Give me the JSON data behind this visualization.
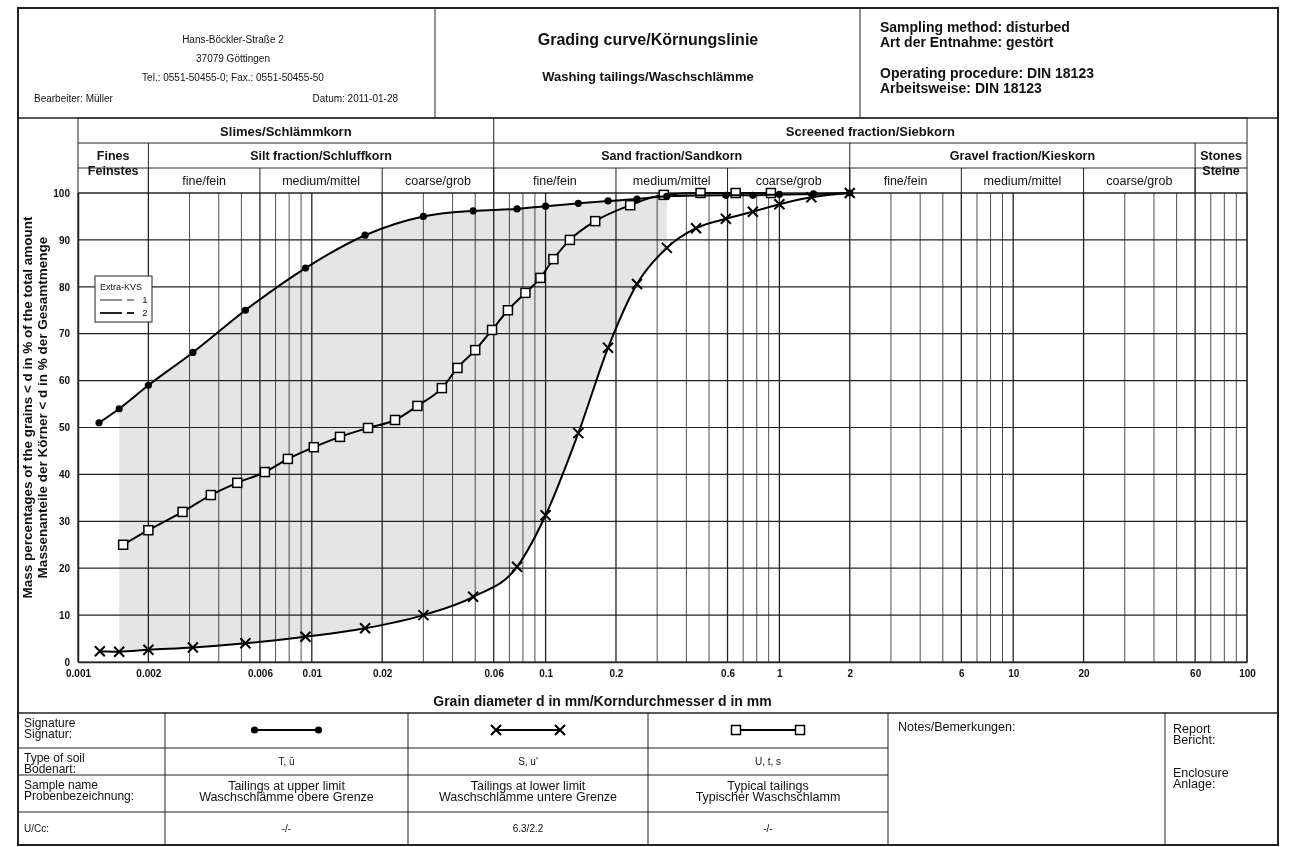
{
  "chart_data": {
    "type": "line",
    "title": "Grading curve/Körnungslinie",
    "subtitle": "Washing tailings/Waschschlämme",
    "xlabel": "Grain diameter d in mm/Korndurchmesser d in mm",
    "ylabel": "Mass percentages of the grains < d in % of the total amount\nMassenanteile der Körner < d in % der Gesamtmenge",
    "log": "x",
    "grid": true,
    "xlim": [
      0.001,
      100
    ],
    "ylim": [
      0,
      100
    ],
    "xticks": [
      0.001,
      0.002,
      {
        "value": 0.003,
        "label": null
      },
      {
        "value": 0.004,
        "label": null
      },
      {
        "value": 0.005,
        "label": null
      },
      0.006,
      {
        "value": 0.007,
        "label": null
      },
      {
        "value": 0.008,
        "label": null
      },
      {
        "value": 0.009,
        "label": null
      },
      0.01,
      0.02,
      {
        "value": 0.03,
        "label": null
      },
      {
        "value": 0.04,
        "label": null
      },
      {
        "value": 0.05,
        "label": null
      },
      0.06,
      {
        "value": 0.07,
        "label": null
      },
      {
        "value": 0.08,
        "label": null
      },
      {
        "value": 0.09,
        "label": null
      },
      0.1,
      0.2,
      {
        "value": 0.3,
        "label": null
      },
      {
        "value": 0.4,
        "label": null
      },
      {
        "value": 0.5,
        "label": null
      },
      0.6,
      {
        "value": 0.7,
        "label": null
      },
      {
        "value": 0.8,
        "label": null
      },
      {
        "value": 0.9,
        "label": null
      },
      1,
      2,
      {
        "value": 3,
        "label": null
      },
      {
        "value": 4,
        "label": null
      },
      {
        "value": 5,
        "label": null
      },
      6,
      {
        "value": 7,
        "label": null
      },
      {
        "value": 8,
        "label": null
      },
      {
        "value": 9,
        "label": null
      },
      10,
      20,
      {
        "value": 30,
        "label": null
      },
      {
        "value": 40,
        "label": null
      },
      {
        "value": 50,
        "label": null
      },
      60,
      {
        "value": 70,
        "label": null
      },
      {
        "value": 80,
        "label": null
      },
      {
        "value": 90,
        "label": null
      },
      100
    ],
    "yticks": [
      0,
      10,
      20,
      30,
      40,
      50,
      60,
      70,
      80,
      90,
      100
    ],
    "series": [
      {
        "color": "#000000",
        "marker": "circle",
        "lower": [
          null,
          2.2,
          2.6,
          3.1,
          4.0,
          5.4,
          7.2,
          10.0,
          13.9,
          20.3,
          31.3,
          48.8,
          67.0,
          80.6,
          88.3,
          null,
          null,
          null,
          null,
          null
        ],
        "upper": [
          null,
          54,
          59,
          66,
          75,
          84,
          91,
          95,
          96.2,
          96.6,
          97.2,
          97.8,
          98.3,
          98.7,
          99.3,
          null,
          null,
          null,
          null,
          null
        ],
        "x": [
          0.00123,
          0.0015,
          0.002,
          0.0031,
          0.0052,
          0.0094,
          0.0169,
          0.03,
          0.049,
          0.0755,
          0.1,
          0.138,
          0.185,
          0.246,
          0.33,
          0.59,
          0.77,
          1.0,
          1.4,
          2
        ],
        "values": [
          51,
          54,
          59,
          66,
          75,
          84,
          91,
          95,
          96.2,
          96.6,
          97.2,
          97.8,
          98.3,
          98.7,
          99.3,
          99.5,
          99.5,
          99.7,
          99.8,
          100
        ]
      },
      {
        "color": "#000000",
        "marker": "cross",
        "x": [
          0.00124,
          0.0015,
          0.002,
          0.0031,
          0.0052,
          0.0094,
          0.0169,
          0.03,
          0.049,
          0.0755,
          0.1,
          0.138,
          0.185,
          0.246,
          0.33,
          0.44,
          0.59,
          0.77,
          1.0,
          1.37,
          2
        ],
        "values": [
          2.3,
          2.2,
          2.6,
          3.1,
          4.0,
          5.4,
          7.2,
          10.0,
          13.9,
          20.3,
          31.3,
          48.8,
          67.0,
          80.6,
          88.3,
          92.5,
          94.5,
          96.0,
          97.6,
          99.1,
          100
        ]
      },
      {
        "color": "#000000",
        "marker": "square",
        "x": [
          0.00156,
          0.002,
          0.0028,
          0.0037,
          0.0048,
          0.0063,
          0.0079,
          0.0102,
          0.0132,
          0.0174,
          0.0227,
          0.0283,
          0.036,
          0.042,
          0.05,
          0.059,
          0.069,
          0.082,
          0.095,
          0.108,
          0.127,
          0.163,
          0.23,
          0.32,
          0.46,
          0.65,
          0.92
        ],
        "values": [
          25,
          28.1,
          32,
          35.6,
          38.2,
          40.5,
          43.3,
          45.8,
          48,
          49.9,
          51.6,
          54.6,
          58.4,
          62.7,
          66.5,
          70.8,
          75,
          78.7,
          81.9,
          85.9,
          90,
          94,
          97.4,
          99.6,
          100,
          100,
          100
        ]
      }
    ],
    "annotations": [
      "Hans-Böckler-Straße 2",
      "37079 Göttingen",
      "Tel.: 0551-50455-0; Fax.: 0551-50455-50",
      "Bearbeiter: Müller",
      "Datum: 2011-01-28",
      "Sampling method: disturbed",
      "Art der Entnahme: gestört",
      "Operating procedure: DIN 18123",
      "Arbeitsweise: DIN 18123",
      "Slimes/Schlämmkorn",
      "Screened fraction/Siebkorn",
      "Fines\nFeinstes",
      "Silt fraction/Schluffkorn",
      "Sand fraction/Sandkorn",
      "Gravel fraction/Kieskorn",
      "Stones\nSteine",
      "fine/fein",
      "medium/mittel",
      "coarse/grob",
      "fine/fein",
      "medium/mittel",
      "coarse/grob",
      "fine/fein",
      "medium/mittel",
      "coarse/grob",
      "Extra-KVS",
      "1",
      "2",
      "Signature\nSignatur:",
      "Type of soil\nBodenart:",
      "Sample name\nProbenbezeichnung:",
      "U/Cc:",
      "T, ū",
      "S, u'",
      "U, t, s",
      "-/-",
      "6.3/2.2",
      "-/-",
      "Notes/Bemerkungen:",
      "Report\nBericht:",
      "Enclosure\nAnlage:",
      "Tailings at upper limit\nWaschschlämme obere Grenze",
      "Tailings at lower limit\nWaschschlämme untere Grenze",
      "Typical tailings\nTypischer Waschschlamm"
    ]
  }
}
